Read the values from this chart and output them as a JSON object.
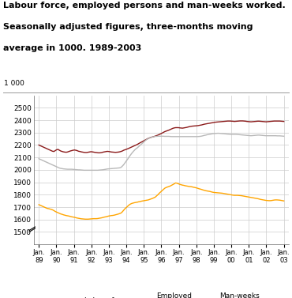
{
  "title_line1": "Labour force, employed persons and man-weeks worked.",
  "title_line2": "Seasonally adjusted figures, three-months moving",
  "title_line3": "average in 1000. 1989-2003",
  "ylabel_top": "1 000",
  "ylim": [
    1400,
    2600
  ],
  "yticks": [
    1500,
    1600,
    1700,
    1800,
    1900,
    2000,
    2100,
    2200,
    2300,
    2400,
    2500
  ],
  "xlabel_years": [
    "89",
    "90",
    "91",
    "92",
    "93",
    "94",
    "95",
    "96",
    "97",
    "98",
    "99",
    "00",
    "01",
    "02",
    "03"
  ],
  "n_points": 180,
  "labour_force_color": "#8B1A1A",
  "employed_persons_color": "#B8B8B8",
  "man_weeks_color": "#FFA500",
  "legend_labels": [
    "Labour force",
    "Employed\npersons",
    "Man-weeks\nworked"
  ],
  "labour_force_data": [
    2200,
    2195,
    2190,
    2185,
    2180,
    2175,
    2170,
    2165,
    2160,
    2155,
    2150,
    2148,
    2155,
    2162,
    2165,
    2158,
    2152,
    2148,
    2145,
    2143,
    2142,
    2144,
    2148,
    2152,
    2155,
    2158,
    2160,
    2158,
    2155,
    2150,
    2148,
    2145,
    2143,
    2141,
    2140,
    2140,
    2142,
    2144,
    2146,
    2145,
    2143,
    2141,
    2140,
    2138,
    2137,
    2138,
    2140,
    2143,
    2145,
    2147,
    2149,
    2148,
    2146,
    2144,
    2143,
    2142,
    2141,
    2142,
    2143,
    2145,
    2148,
    2152,
    2158,
    2162,
    2166,
    2170,
    2175,
    2180,
    2185,
    2190,
    2195,
    2200,
    2205,
    2212,
    2218,
    2224,
    2230,
    2236,
    2242,
    2248,
    2254,
    2258,
    2262,
    2265,
    2268,
    2272,
    2276,
    2280,
    2285,
    2290,
    2296,
    2302,
    2308,
    2312,
    2316,
    2320,
    2325,
    2330,
    2335,
    2338,
    2340,
    2340,
    2340,
    2338,
    2337,
    2336,
    2338,
    2340,
    2342,
    2345,
    2348,
    2350,
    2352,
    2353,
    2354,
    2355,
    2356,
    2358,
    2360,
    2362,
    2365,
    2368,
    2370,
    2372,
    2374,
    2376,
    2378,
    2380,
    2382,
    2384,
    2385,
    2386,
    2387,
    2388,
    2389,
    2390,
    2391,
    2392,
    2393,
    2393,
    2393,
    2392,
    2391,
    2390,
    2391,
    2392,
    2393,
    2394,
    2394,
    2394,
    2393,
    2392,
    2390,
    2389,
    2388,
    2387,
    2388,
    2389,
    2390,
    2391,
    2392,
    2392,
    2391,
    2390,
    2389,
    2388,
    2387,
    2388,
    2389,
    2390,
    2391,
    2392,
    2393,
    2393,
    2393,
    2393,
    2393,
    2392,
    2391,
    2390
  ],
  "employed_persons_data": [
    2090,
    2085,
    2080,
    2075,
    2070,
    2065,
    2060,
    2055,
    2050,
    2045,
    2040,
    2035,
    2030,
    2025,
    2020,
    2015,
    2012,
    2010,
    2008,
    2007,
    2006,
    2005,
    2005,
    2005,
    2005,
    2004,
    2003,
    2002,
    2001,
    2000,
    2000,
    1999,
    1998,
    1997,
    1997,
    1997,
    1997,
    1997,
    1997,
    1997,
    1997,
    1997,
    1997,
    1997,
    1998,
    1999,
    2000,
    2001,
    2003,
    2005,
    2007,
    2008,
    2009,
    2010,
    2011,
    2012,
    2013,
    2014,
    2015,
    2016,
    2020,
    2030,
    2042,
    2057,
    2072,
    2088,
    2105,
    2120,
    2135,
    2148,
    2160,
    2170,
    2178,
    2188,
    2198,
    2208,
    2218,
    2228,
    2238,
    2246,
    2253,
    2258,
    2262,
    2265,
    2267,
    2269,
    2270,
    2271,
    2271,
    2271,
    2271,
    2271,
    2270,
    2270,
    2270,
    2270,
    2269,
    2268,
    2268,
    2268,
    2268,
    2268,
    2268,
    2268,
    2268,
    2268,
    2268,
    2268,
    2268,
    2268,
    2268,
    2268,
    2268,
    2268,
    2268,
    2268,
    2268,
    2269,
    2270,
    2272,
    2275,
    2278,
    2280,
    2283,
    2285,
    2287,
    2289,
    2291,
    2292,
    2293,
    2294,
    2295,
    2294,
    2293,
    2292,
    2291,
    2290,
    2289,
    2288,
    2287,
    2286,
    2286,
    2286,
    2286,
    2286,
    2285,
    2284,
    2283,
    2282,
    2281,
    2280,
    2279,
    2278,
    2277,
    2276,
    2275,
    2276,
    2277,
    2278,
    2279,
    2280,
    2280,
    2279,
    2278,
    2277,
    2276,
    2275,
    2275,
    2275,
    2275,
    2275,
    2275,
    2275,
    2275,
    2274,
    2274,
    2274,
    2273,
    2272,
    2271
  ],
  "man_weeks_data": [
    1720,
    1715,
    1710,
    1705,
    1700,
    1695,
    1690,
    1688,
    1685,
    1682,
    1678,
    1672,
    1665,
    1660,
    1655,
    1650,
    1645,
    1642,
    1638,
    1635,
    1632,
    1630,
    1628,
    1625,
    1622,
    1620,
    1618,
    1615,
    1612,
    1610,
    1608,
    1606,
    1605,
    1604,
    1603,
    1603,
    1603,
    1604,
    1605,
    1606,
    1607,
    1607,
    1607,
    1608,
    1610,
    1612,
    1614,
    1617,
    1620,
    1622,
    1625,
    1628,
    1630,
    1632,
    1633,
    1635,
    1638,
    1641,
    1644,
    1648,
    1652,
    1662,
    1675,
    1688,
    1698,
    1708,
    1718,
    1725,
    1730,
    1733,
    1736,
    1738,
    1740,
    1743,
    1745,
    1748,
    1750,
    1752,
    1754,
    1756,
    1758,
    1762,
    1766,
    1770,
    1775,
    1780,
    1790,
    1800,
    1812,
    1822,
    1832,
    1842,
    1852,
    1858,
    1862,
    1866,
    1870,
    1876,
    1882,
    1888,
    1895,
    1892,
    1888,
    1883,
    1880,
    1877,
    1875,
    1872,
    1870,
    1868,
    1866,
    1865,
    1863,
    1860,
    1858,
    1855,
    1852,
    1848,
    1845,
    1842,
    1838,
    1835,
    1832,
    1830,
    1828,
    1826,
    1823,
    1820,
    1818,
    1817,
    1816,
    1815,
    1814,
    1813,
    1812,
    1810,
    1808,
    1806,
    1804,
    1802,
    1800,
    1798,
    1796,
    1795,
    1795,
    1795,
    1794,
    1793,
    1792,
    1790,
    1788,
    1786,
    1784,
    1782,
    1780,
    1778,
    1776,
    1774,
    1772,
    1770,
    1768,
    1765,
    1762,
    1760,
    1758,
    1756,
    1754,
    1753,
    1752,
    1752,
    1753,
    1755,
    1757,
    1758,
    1758,
    1757,
    1756,
    1754,
    1752,
    1750
  ]
}
